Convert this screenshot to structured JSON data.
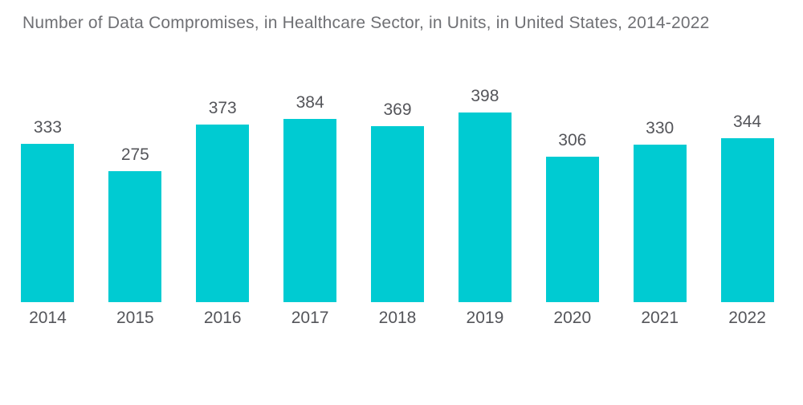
{
  "title": "Number of Data Compromises, in Healthcare Sector, in Units, in United States, 2014-2022",
  "colors": {
    "bar": "#00CBD2",
    "label_text": "#54555A",
    "title_text": "#6F7074",
    "background": "#FFFFFF"
  },
  "chart_data": {
    "type": "bar",
    "title": "Number of Data Compromises, in Healthcare Sector, in Units, in United States, 2014-2022",
    "categories": [
      "2014",
      "2015",
      "2016",
      "2017",
      "2018",
      "2019",
      "2020",
      "2021",
      "2022"
    ],
    "values": [
      333,
      275,
      373,
      384,
      369,
      398,
      306,
      330,
      344
    ],
    "xlabel": "",
    "ylabel": "",
    "ylim": [
      0,
      398
    ],
    "grid": false,
    "legend": false,
    "data_labels": "above-bars",
    "bar_color": "#00CBD2"
  }
}
